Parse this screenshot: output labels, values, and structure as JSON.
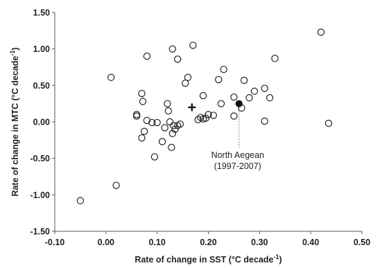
{
  "chart_data": {
    "type": "scatter",
    "xlabel": "Rate of change in SST (°C decade",
    "xlabel_sup": "-1",
    "xlabel_end": ")",
    "ylabel": "Rate of change in MTC (°C decade",
    "ylabel_sup": "-1",
    "ylabel_end": ")",
    "xlim": [
      -0.1,
      0.5
    ],
    "ylim": [
      -1.5,
      1.5
    ],
    "xticks": [
      -0.1,
      0.0,
      0.1,
      0.2,
      0.3,
      0.4,
      0.5
    ],
    "xtick_labels": [
      "-0.10",
      "0.00",
      "0.10",
      "0.20",
      "0.30",
      "0.40",
      "0.50"
    ],
    "yticks": [
      -1.5,
      -1.0,
      -0.5,
      0.0,
      0.5,
      1.0,
      1.5
    ],
    "ytick_labels": [
      "-1.50",
      "-1.00",
      "-0.50",
      "0.00",
      "0.50",
      "1.00",
      "1.50"
    ],
    "grid": false,
    "series": [
      {
        "marker": "open-circle",
        "points": [
          [
            -0.05,
            -1.08
          ],
          [
            0.02,
            -0.87
          ],
          [
            0.01,
            0.61
          ],
          [
            0.06,
            0.08
          ],
          [
            0.06,
            0.1
          ],
          [
            0.07,
            0.39
          ],
          [
            0.072,
            0.28
          ],
          [
            0.07,
            -0.22
          ],
          [
            0.075,
            -0.13
          ],
          [
            0.08,
            0.9
          ],
          [
            0.08,
            0.02
          ],
          [
            0.09,
            -0.01
          ],
          [
            0.095,
            -0.48
          ],
          [
            0.1,
            -0.01
          ],
          [
            0.11,
            -0.27
          ],
          [
            0.115,
            -0.08
          ],
          [
            0.12,
            0.25
          ],
          [
            0.122,
            0.15
          ],
          [
            0.125,
            0.0
          ],
          [
            0.128,
            -0.35
          ],
          [
            0.13,
            -0.16
          ],
          [
            0.132,
            -0.05
          ],
          [
            0.135,
            -0.1
          ],
          [
            0.14,
            -0.05
          ],
          [
            0.13,
            1.0
          ],
          [
            0.14,
            0.86
          ],
          [
            0.145,
            -0.03
          ],
          [
            0.155,
            0.53
          ],
          [
            0.16,
            0.61
          ],
          [
            0.17,
            1.05
          ],
          [
            0.18,
            0.03
          ],
          [
            0.185,
            0.06
          ],
          [
            0.19,
            0.04
          ],
          [
            0.19,
            0.36
          ],
          [
            0.195,
            0.05
          ],
          [
            0.2,
            0.1
          ],
          [
            0.21,
            0.09
          ],
          [
            0.22,
            0.58
          ],
          [
            0.225,
            0.25
          ],
          [
            0.23,
            0.72
          ],
          [
            0.25,
            0.08
          ],
          [
            0.25,
            0.34
          ],
          [
            0.265,
            0.19
          ],
          [
            0.27,
            0.57
          ],
          [
            0.28,
            0.33
          ],
          [
            0.29,
            0.42
          ],
          [
            0.31,
            0.01
          ],
          [
            0.31,
            0.46
          ],
          [
            0.32,
            0.33
          ],
          [
            0.33,
            0.87
          ],
          [
            0.42,
            1.23
          ],
          [
            0.435,
            -0.02
          ]
        ]
      },
      {
        "marker": "plus",
        "points": [
          [
            0.168,
            0.2
          ]
        ]
      },
      {
        "marker": "filled-circle",
        "points": [
          [
            0.26,
            0.25
          ]
        ]
      }
    ],
    "annotations": [
      {
        "lines": [
          "North Aegean",
          "(1997-2007)"
        ],
        "target": [
          0.26,
          0.25
        ]
      }
    ]
  }
}
